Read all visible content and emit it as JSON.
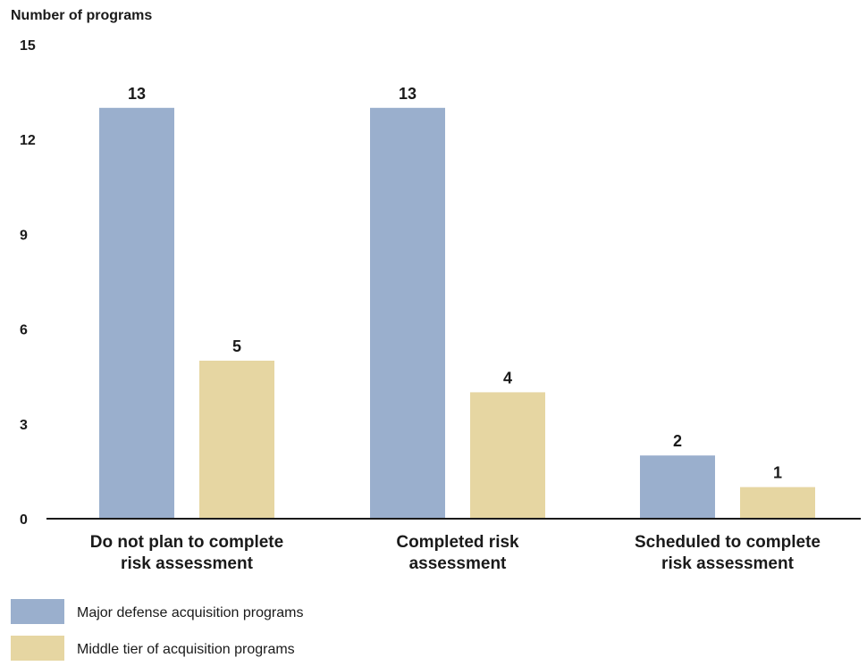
{
  "chart_data": {
    "type": "bar",
    "title": "",
    "ylabel": "Number of programs",
    "xlabel": "",
    "ylim": [
      0,
      15
    ],
    "yticks": [
      0,
      3,
      6,
      9,
      12,
      15
    ],
    "grid": false,
    "legend_position": "bottom-left",
    "categories": [
      [
        "Do not plan to complete",
        "risk assessment"
      ],
      [
        "Completed risk",
        "assessment"
      ],
      [
        "Scheduled to complete",
        "risk assessment"
      ]
    ],
    "series": [
      {
        "name": "Major defense acquisition programs",
        "color": "#9aafcd",
        "values": [
          13,
          13,
          2
        ]
      },
      {
        "name": "Middle tier of acquisition programs",
        "color": "#e6d6a2",
        "values": [
          5,
          4,
          1
        ]
      }
    ]
  }
}
